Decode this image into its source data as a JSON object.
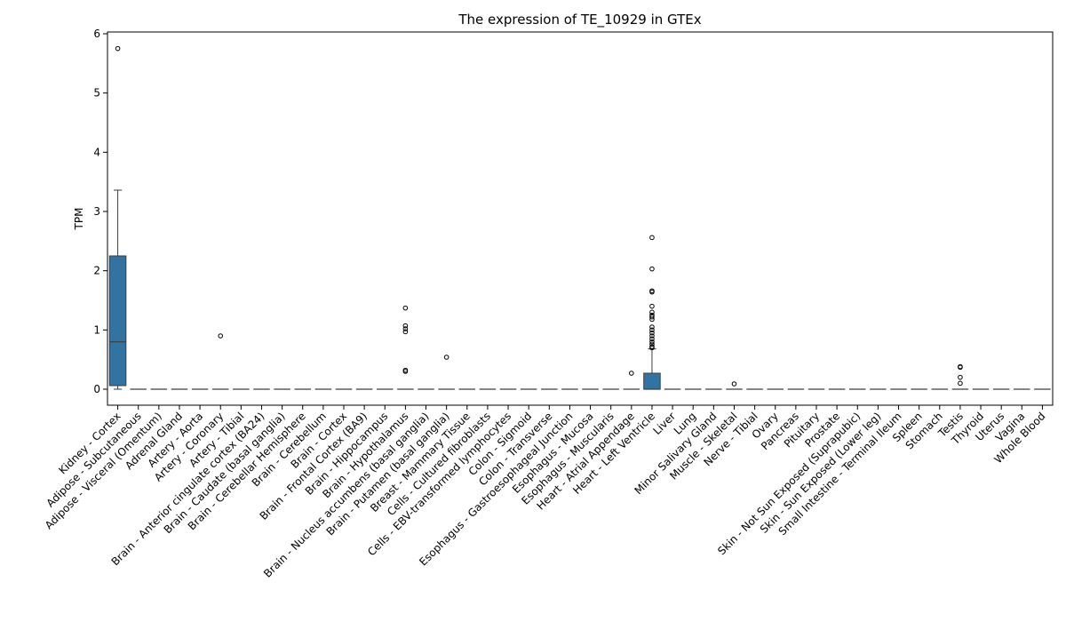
{
  "chart_data": {
    "type": "box",
    "title": "The expression of TE_10929 in GTEx",
    "xlabel": "",
    "ylabel": "TPM",
    "ylim": [
      -0.27,
      6.03
    ],
    "yticks": [
      0,
      1,
      2,
      3,
      4,
      5,
      6
    ],
    "grid": false,
    "box_color": "#3274a1",
    "categories": [
      "Kidney - Cortex",
      "Adipose - Subcutaneous",
      "Adipose - Visceral (Omentum)",
      "Adrenal Gland",
      "Artery - Aorta",
      "Artery - Coronary",
      "Artery - Tibial",
      "Brain - Anterior cingulate cortex (BA24)",
      "Brain - Caudate (basal ganglia)",
      "Brain - Cerebellar Hemisphere",
      "Brain - Cerebellum",
      "Brain - Cortex",
      "Brain - Frontal Cortex (BA9)",
      "Brain - Hippocampus",
      "Brain - Hypothalamus",
      "Brain - Nucleus accumbens (basal ganglia)",
      "Brain - Putamen (basal ganglia)",
      "Breast - Mammary Tissue",
      "Cells - Cultured fibroblasts",
      "Cells - EBV-transformed lymphocytes",
      "Colon - Sigmoid",
      "Colon - Transverse",
      "Esophagus - Gastroesophageal Junction",
      "Esophagus - Mucosa",
      "Esophagus - Muscularis",
      "Heart - Atrial Appendage",
      "Heart - Left Ventricle",
      "Liver",
      "Lung",
      "Minor Salivary Gland",
      "Muscle - Skeletal",
      "Nerve - Tibial",
      "Ovary",
      "Pancreas",
      "Pituitary",
      "Prostate",
      "Skin - Not Sun Exposed (Suprapubic)",
      "Skin - Sun Exposed (Lower leg)",
      "Small Intestine - Terminal Ileum",
      "Spleen",
      "Stomach",
      "Testis",
      "Thyroid",
      "Uterus",
      "Vagina",
      "Whole Blood"
    ],
    "boxes": [
      {
        "q1": 0.06,
        "median": 0.8,
        "q3": 2.25,
        "whisker_low": 0.0,
        "whisker_high": 3.36,
        "outliers": [
          5.75
        ]
      },
      {
        "q1": 0,
        "median": 0,
        "q3": 0,
        "whisker_low": 0,
        "whisker_high": 0,
        "outliers": []
      },
      {
        "q1": 0,
        "median": 0,
        "q3": 0,
        "whisker_low": 0,
        "whisker_high": 0,
        "outliers": []
      },
      {
        "q1": 0,
        "median": 0,
        "q3": 0,
        "whisker_low": 0,
        "whisker_high": 0,
        "outliers": []
      },
      {
        "q1": 0,
        "median": 0,
        "q3": 0,
        "whisker_low": 0,
        "whisker_high": 0,
        "outliers": []
      },
      {
        "q1": 0,
        "median": 0,
        "q3": 0,
        "whisker_low": 0,
        "whisker_high": 0,
        "outliers": [
          0.9
        ]
      },
      {
        "q1": 0,
        "median": 0,
        "q3": 0,
        "whisker_low": 0,
        "whisker_high": 0,
        "outliers": []
      },
      {
        "q1": 0,
        "median": 0,
        "q3": 0,
        "whisker_low": 0,
        "whisker_high": 0,
        "outliers": []
      },
      {
        "q1": 0,
        "median": 0,
        "q3": 0,
        "whisker_low": 0,
        "whisker_high": 0,
        "outliers": []
      },
      {
        "q1": 0,
        "median": 0,
        "q3": 0,
        "whisker_low": 0,
        "whisker_high": 0,
        "outliers": []
      },
      {
        "q1": 0,
        "median": 0,
        "q3": 0,
        "whisker_low": 0,
        "whisker_high": 0,
        "outliers": []
      },
      {
        "q1": 0,
        "median": 0,
        "q3": 0,
        "whisker_low": 0,
        "whisker_high": 0,
        "outliers": []
      },
      {
        "q1": 0,
        "median": 0,
        "q3": 0,
        "whisker_low": 0,
        "whisker_high": 0,
        "outliers": []
      },
      {
        "q1": 0,
        "median": 0,
        "q3": 0,
        "whisker_low": 0,
        "whisker_high": 0,
        "outliers": []
      },
      {
        "q1": 0,
        "median": 0,
        "q3": 0,
        "whisker_low": 0,
        "whisker_high": 0,
        "outliers": [
          1.37,
          1.07,
          1.02,
          0.97,
          0.32,
          0.3
        ]
      },
      {
        "q1": 0,
        "median": 0,
        "q3": 0,
        "whisker_low": 0,
        "whisker_high": 0,
        "outliers": []
      },
      {
        "q1": 0,
        "median": 0,
        "q3": 0,
        "whisker_low": 0,
        "whisker_high": 0,
        "outliers": [
          0.54
        ]
      },
      {
        "q1": 0,
        "median": 0,
        "q3": 0,
        "whisker_low": 0,
        "whisker_high": 0,
        "outliers": []
      },
      {
        "q1": 0,
        "median": 0,
        "q3": 0,
        "whisker_low": 0,
        "whisker_high": 0,
        "outliers": []
      },
      {
        "q1": 0,
        "median": 0,
        "q3": 0,
        "whisker_low": 0,
        "whisker_high": 0,
        "outliers": []
      },
      {
        "q1": 0,
        "median": 0,
        "q3": 0,
        "whisker_low": 0,
        "whisker_high": 0,
        "outliers": []
      },
      {
        "q1": 0,
        "median": 0,
        "q3": 0,
        "whisker_low": 0,
        "whisker_high": 0,
        "outliers": []
      },
      {
        "q1": 0,
        "median": 0,
        "q3": 0,
        "whisker_low": 0,
        "whisker_high": 0,
        "outliers": []
      },
      {
        "q1": 0,
        "median": 0,
        "q3": 0,
        "whisker_low": 0,
        "whisker_high": 0,
        "outliers": []
      },
      {
        "q1": 0,
        "median": 0,
        "q3": 0,
        "whisker_low": 0,
        "whisker_high": 0,
        "outliers": []
      },
      {
        "q1": 0,
        "median": 0,
        "q3": 0,
        "whisker_low": 0,
        "whisker_high": 0,
        "outliers": [
          0.27
        ]
      },
      {
        "q1": 0.0,
        "median": 0.0,
        "q3": 0.27,
        "whisker_low": 0.0,
        "whisker_high": 0.68,
        "outliers": [
          2.56,
          2.03,
          1.66,
          1.64,
          1.4,
          1.3,
          1.25,
          1.22,
          1.18,
          1.05,
          1.0,
          0.95,
          0.9,
          0.85,
          0.8,
          0.76,
          0.72,
          0.7
        ]
      },
      {
        "q1": 0,
        "median": 0,
        "q3": 0,
        "whisker_low": 0,
        "whisker_high": 0,
        "outliers": []
      },
      {
        "q1": 0,
        "median": 0,
        "q3": 0,
        "whisker_low": 0,
        "whisker_high": 0,
        "outliers": []
      },
      {
        "q1": 0,
        "median": 0,
        "q3": 0,
        "whisker_low": 0,
        "whisker_high": 0,
        "outliers": []
      },
      {
        "q1": 0,
        "median": 0,
        "q3": 0,
        "whisker_low": 0,
        "whisker_high": 0,
        "outliers": [
          0.09
        ]
      },
      {
        "q1": 0,
        "median": 0,
        "q3": 0,
        "whisker_low": 0,
        "whisker_high": 0,
        "outliers": []
      },
      {
        "q1": 0,
        "median": 0,
        "q3": 0,
        "whisker_low": 0,
        "whisker_high": 0,
        "outliers": []
      },
      {
        "q1": 0,
        "median": 0,
        "q3": 0,
        "whisker_low": 0,
        "whisker_high": 0,
        "outliers": []
      },
      {
        "q1": 0,
        "median": 0,
        "q3": 0,
        "whisker_low": 0,
        "whisker_high": 0,
        "outliers": []
      },
      {
        "q1": 0,
        "median": 0,
        "q3": 0,
        "whisker_low": 0,
        "whisker_high": 0,
        "outliers": []
      },
      {
        "q1": 0,
        "median": 0,
        "q3": 0,
        "whisker_low": 0,
        "whisker_high": 0,
        "outliers": []
      },
      {
        "q1": 0,
        "median": 0,
        "q3": 0,
        "whisker_low": 0,
        "whisker_high": 0,
        "outliers": []
      },
      {
        "q1": 0,
        "median": 0,
        "q3": 0,
        "whisker_low": 0,
        "whisker_high": 0,
        "outliers": []
      },
      {
        "q1": 0,
        "median": 0,
        "q3": 0,
        "whisker_low": 0,
        "whisker_high": 0,
        "outliers": []
      },
      {
        "q1": 0,
        "median": 0,
        "q3": 0,
        "whisker_low": 0,
        "whisker_high": 0,
        "outliers": []
      },
      {
        "q1": 0,
        "median": 0,
        "q3": 0,
        "whisker_low": 0,
        "whisker_high": 0,
        "outliers": [
          0.38,
          0.37,
          0.2,
          0.1
        ]
      },
      {
        "q1": 0,
        "median": 0,
        "q3": 0,
        "whisker_low": 0,
        "whisker_high": 0,
        "outliers": []
      },
      {
        "q1": 0,
        "median": 0,
        "q3": 0,
        "whisker_low": 0,
        "whisker_high": 0,
        "outliers": []
      },
      {
        "q1": 0,
        "median": 0,
        "q3": 0,
        "whisker_low": 0,
        "whisker_high": 0,
        "outliers": []
      },
      {
        "q1": 0,
        "median": 0,
        "q3": 0,
        "whisker_low": 0,
        "whisker_high": 0,
        "outliers": []
      }
    ]
  }
}
